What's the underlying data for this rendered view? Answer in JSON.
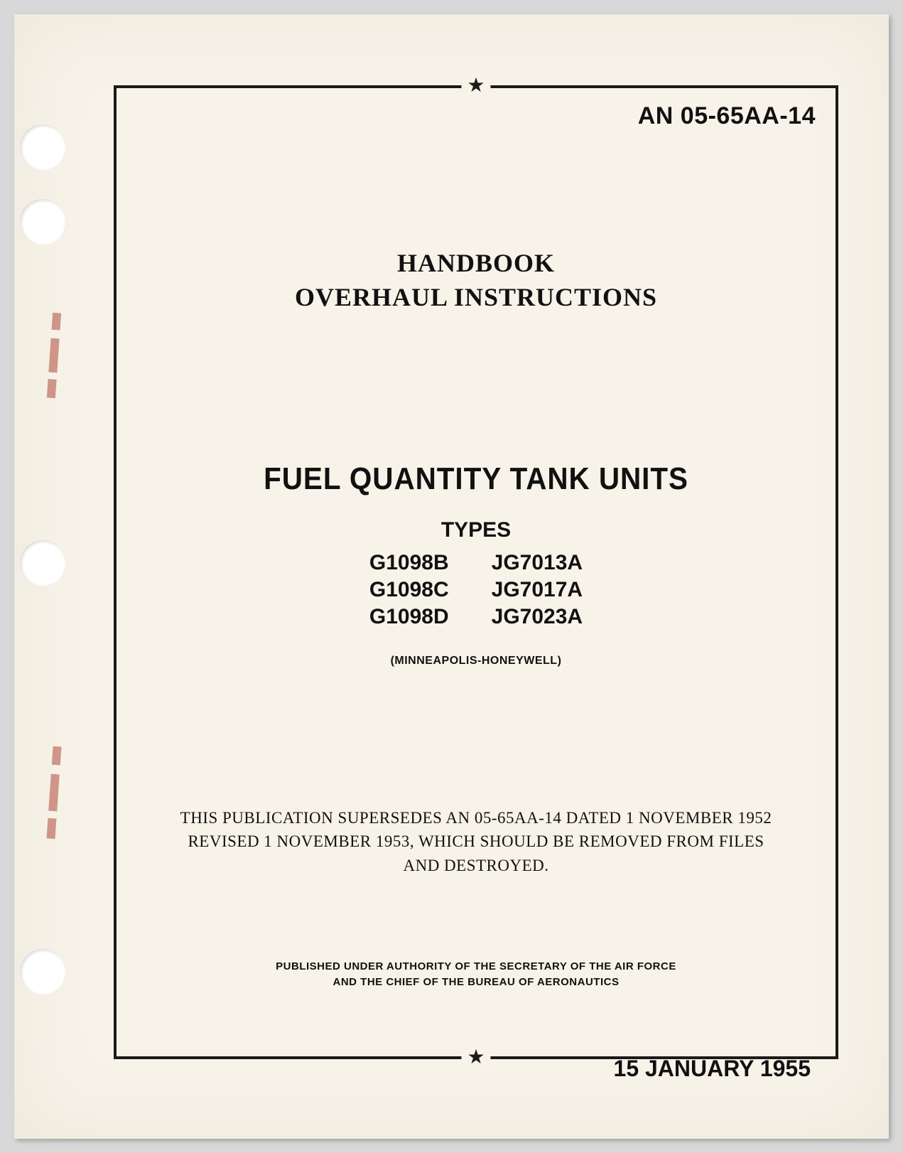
{
  "document": {
    "id": "AN 05-65AA-14",
    "heading_line1": "HANDBOOK",
    "heading_line2": "OVERHAUL INSTRUCTIONS",
    "main_title": "FUEL QUANTITY TANK UNITS",
    "types_label": "TYPES",
    "types": {
      "col1": [
        "G1098B",
        "G1098C",
        "G1098D"
      ],
      "col2": [
        "JG7013A",
        "JG7017A",
        "JG7023A"
      ]
    },
    "manufacturer": "(MINNEAPOLIS-HONEYWELL)",
    "supersede_line1": "THIS PUBLICATION SUPERSEDES AN 05-65AA-14 DATED 1 NOVEMBER 1952",
    "supersede_line2": "REVISED 1 NOVEMBER 1953, WHICH SHOULD BE REMOVED FROM FILES",
    "supersede_line3": "AND DESTROYED.",
    "authority_line1": "PUBLISHED UNDER AUTHORITY OF THE SECRETARY OF THE AIR FORCE",
    "authority_line2": "AND THE CHIEF OF THE BUREAU OF AERONAUTICS",
    "date": "15 JANUARY 1955",
    "star_glyph": "★"
  },
  "style": {
    "page_bg": "#f7f3e9",
    "border_color": "#1a1a1a",
    "text_color": "#111111",
    "hole_bg": "#ffffff",
    "scuff_color": "#b04a3a"
  }
}
